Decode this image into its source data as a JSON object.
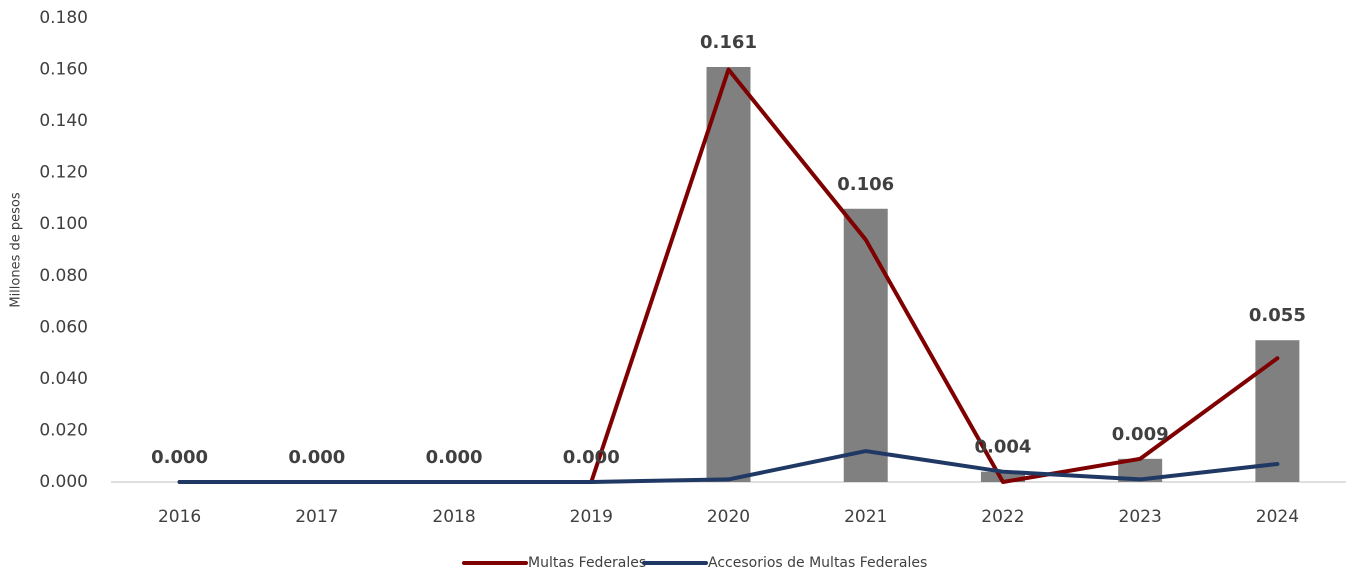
{
  "chart_data": {
    "type": "combo",
    "y_label": "Millones de pesos",
    "categories": [
      "2016",
      "2017",
      "2018",
      "2019",
      "2020",
      "2021",
      "2022",
      "2023",
      "2024"
    ],
    "bars": {
      "color": "#808080",
      "values": [
        0,
        0,
        0,
        0,
        0.161,
        0.106,
        0.004,
        0.009,
        0.055
      ],
      "value_labels": [
        "0.000",
        "0.000",
        "0.000",
        "0.000",
        "0.161",
        "0.106",
        "0.004",
        "0.009",
        "0.055"
      ]
    },
    "series": [
      {
        "name": "Multas Federales",
        "color": "#7f0000",
        "values": [
          0,
          0,
          0,
          0,
          0.16,
          0.094,
          0.0,
          0.009,
          0.048
        ]
      },
      {
        "name": "Accesorios de Multas Federales",
        "color": "#203864",
        "values": [
          0,
          0,
          0,
          0,
          0.001,
          0.012,
          0.004,
          0.001,
          0.007
        ]
      }
    ],
    "ylim": [
      0,
      0.18
    ],
    "yticks": [
      {
        "value": 0,
        "label": "0.000"
      },
      {
        "value": 0.02,
        "label": "0.020"
      },
      {
        "value": 0.04,
        "label": "0.040"
      },
      {
        "value": 0.06,
        "label": "0.060"
      },
      {
        "value": 0.08,
        "label": "0.080"
      },
      {
        "value": 0.1,
        "label": "0.100"
      },
      {
        "value": 0.12,
        "label": "0.120"
      },
      {
        "value": 0.14,
        "label": "0.140"
      },
      {
        "value": 0.16,
        "label": "0.160"
      },
      {
        "value": 0.18,
        "label": "0.180"
      }
    ],
    "legend": "bottom"
  }
}
